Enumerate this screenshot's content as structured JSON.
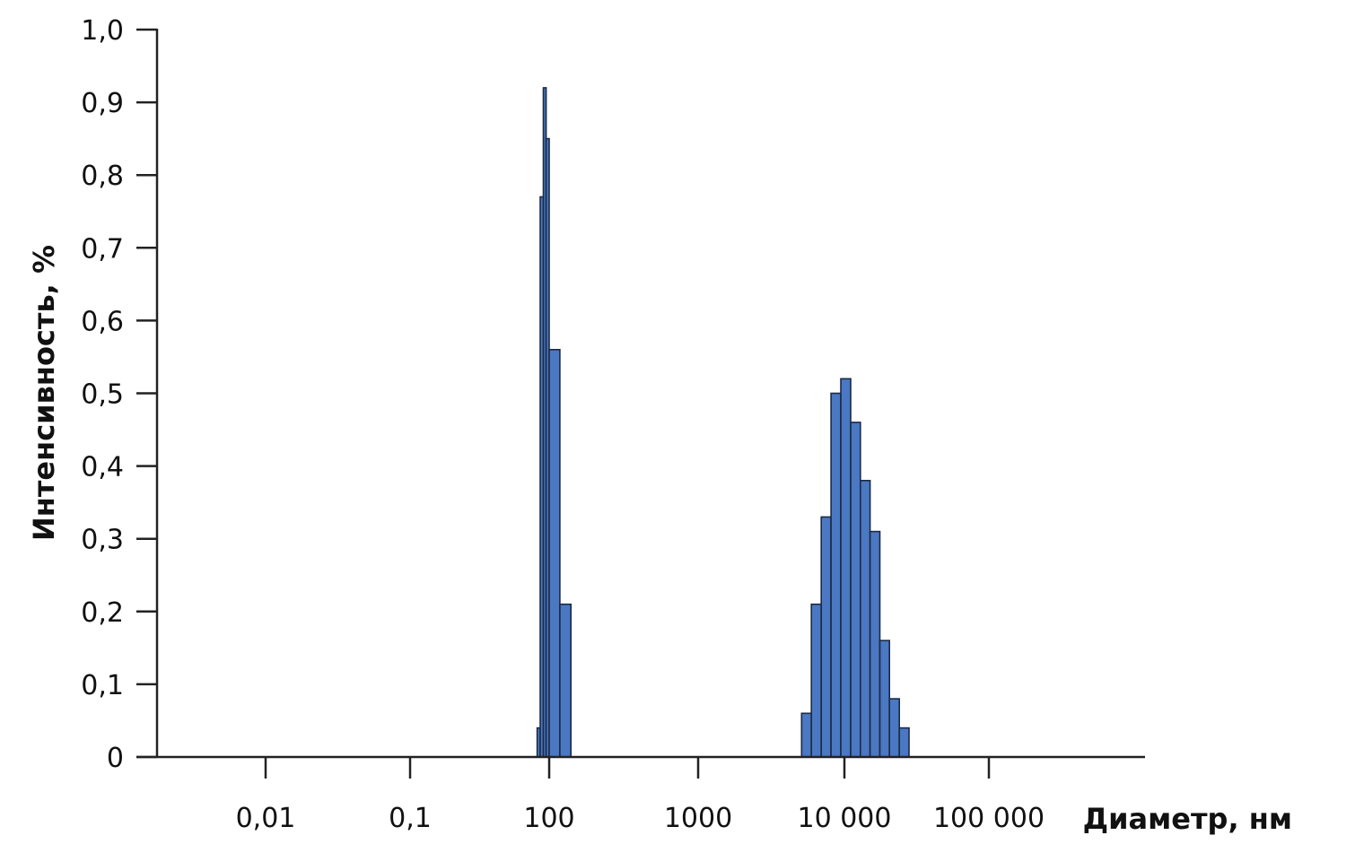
{
  "chart_data": {
    "type": "bar",
    "xscale": "log",
    "xlabel": "Диаметр, нм",
    "ylabel": "Интенсивность, %",
    "ylim": [
      0,
      1.0
    ],
    "grid": false,
    "bar_color": "#4a78c2",
    "y_ticks": [
      {
        "value": 0,
        "label": "0"
      },
      {
        "value": 0.1,
        "label": "0,1"
      },
      {
        "value": 0.2,
        "label": "0,2"
      },
      {
        "value": 0.3,
        "label": "0,3"
      },
      {
        "value": 0.4,
        "label": "0,4"
      },
      {
        "value": 0.5,
        "label": "0,5"
      },
      {
        "value": 0.6,
        "label": "0,6"
      },
      {
        "value": 0.7,
        "label": "0,7"
      },
      {
        "value": 0.8,
        "label": "0,8"
      },
      {
        "value": 0.9,
        "label": "0,9"
      },
      {
        "value": 1.0,
        "label": "1,0"
      }
    ],
    "x_ticks": [
      {
        "value": 0.01,
        "label": "0,01"
      },
      {
        "value": 0.1,
        "label": "0,1"
      },
      {
        "value": 100,
        "label": "100"
      },
      {
        "value": 1000,
        "label": "1000"
      },
      {
        "value": 10000,
        "label": "10 000"
      },
      {
        "value": 100000,
        "label": "100 000"
      }
    ],
    "bars": [
      {
        "x_from": 55,
        "x_to": 64,
        "value": 0.04
      },
      {
        "x_from": 64,
        "x_to": 75,
        "value": 0.77
      },
      {
        "x_from": 75,
        "x_to": 86,
        "value": 0.92
      },
      {
        "x_from": 86,
        "x_to": 100,
        "value": 0.85
      },
      {
        "x_from": 100,
        "x_to": 118,
        "value": 0.56
      },
      {
        "x_from": 118,
        "x_to": 140,
        "value": 0.21
      },
      {
        "x_from": 5100,
        "x_to": 5950,
        "value": 0.06
      },
      {
        "x_from": 5950,
        "x_to": 6950,
        "value": 0.21
      },
      {
        "x_from": 6950,
        "x_to": 8100,
        "value": 0.33
      },
      {
        "x_from": 8100,
        "x_to": 9450,
        "value": 0.5
      },
      {
        "x_from": 9450,
        "x_to": 11050,
        "value": 0.52
      },
      {
        "x_from": 11050,
        "x_to": 12900,
        "value": 0.46
      },
      {
        "x_from": 12900,
        "x_to": 15050,
        "value": 0.38
      },
      {
        "x_from": 15050,
        "x_to": 17600,
        "value": 0.31
      },
      {
        "x_from": 17600,
        "x_to": 20500,
        "value": 0.16
      },
      {
        "x_from": 20500,
        "x_to": 24000,
        "value": 0.08
      },
      {
        "x_from": 24000,
        "x_to": 28000,
        "value": 0.04
      }
    ]
  }
}
